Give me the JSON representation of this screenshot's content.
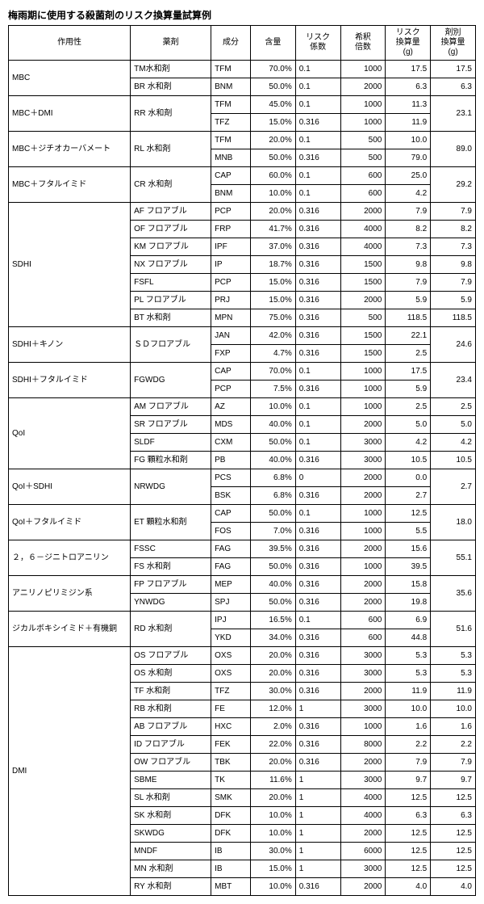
{
  "title": "梅雨期に使用する殺菌剤のリスク換算量試算例",
  "header": {
    "moa": "作用性",
    "product": "薬剤",
    "ingredient": "成分",
    "content": "含量",
    "risk_coef": "リスク\n係数",
    "dilution": "希釈\n倍数",
    "risk_amount": "リスク\n換算量\n(g)",
    "agent_amount": "剤別\n換算量\n(g)"
  },
  "groups": [
    {
      "moa": "MBC",
      "products": [
        {
          "name": "TM水和剤",
          "rows": [
            {
              "ing": "TFM",
              "cnt": "70.0%",
              "rc": "0.1",
              "dil": "1000",
              "ra": "17.5"
            }
          ],
          "agent": "17.5"
        },
        {
          "name": "BR 水和剤",
          "rows": [
            {
              "ing": "BNM",
              "cnt": "50.0%",
              "rc": "0.1",
              "dil": "2000",
              "ra": "6.3"
            }
          ],
          "agent": "6.3"
        }
      ]
    },
    {
      "moa": "MBC＋DMI",
      "products": [
        {
          "name": "RR 水和剤",
          "rows": [
            {
              "ing": "TFM",
              "cnt": "45.0%",
              "rc": "0.1",
              "dil": "1000",
              "ra": "11.3"
            },
            {
              "ing": "TFZ",
              "cnt": "15.0%",
              "rc": "0.316",
              "dil": "1000",
              "ra": "11.9"
            }
          ],
          "agent": "23.1"
        }
      ]
    },
    {
      "moa": "MBC＋ジチオカーバメート",
      "products": [
        {
          "name": "RL 水和剤",
          "rows": [
            {
              "ing": "TFM",
              "cnt": "20.0%",
              "rc": "0.1",
              "dil": "500",
              "ra": "10.0"
            },
            {
              "ing": "MNB",
              "cnt": "50.0%",
              "rc": "0.316",
              "dil": "500",
              "ra": "79.0"
            }
          ],
          "agent": "89.0"
        }
      ]
    },
    {
      "moa": "MBC＋フタルイミド",
      "products": [
        {
          "name": "CR 水和剤",
          "rows": [
            {
              "ing": "CAP",
              "cnt": "60.0%",
              "rc": "0.1",
              "dil": "600",
              "ra": "25.0"
            },
            {
              "ing": "BNM",
              "cnt": "10.0%",
              "rc": "0.1",
              "dil": "600",
              "ra": "4.2"
            }
          ],
          "agent": "29.2"
        }
      ]
    },
    {
      "moa": "SDHI",
      "products": [
        {
          "name": "AF フロアブル",
          "rows": [
            {
              "ing": "PCP",
              "cnt": "20.0%",
              "rc": "0.316",
              "dil": "2000",
              "ra": "7.9"
            }
          ],
          "agent": "7.9"
        },
        {
          "name": "OF フロアブル",
          "rows": [
            {
              "ing": "FRP",
              "cnt": "41.7%",
              "rc": "0.316",
              "dil": "4000",
              "ra": "8.2"
            }
          ],
          "agent": "8.2"
        },
        {
          "name": "KM フロアブル",
          "rows": [
            {
              "ing": "IPF",
              "cnt": "37.0%",
              "rc": "0.316",
              "dil": "4000",
              "ra": "7.3"
            }
          ],
          "agent": "7.3"
        },
        {
          "name": "NX フロアブル",
          "rows": [
            {
              "ing": "IP",
              "cnt": "18.7%",
              "rc": "0.316",
              "dil": "1500",
              "ra": "9.8"
            }
          ],
          "agent": "9.8"
        },
        {
          "name": "FSFL",
          "rows": [
            {
              "ing": "PCP",
              "cnt": "15.0%",
              "rc": "0.316",
              "dil": "1500",
              "ra": "7.9"
            }
          ],
          "agent": "7.9"
        },
        {
          "name": "PL フロアブル",
          "rows": [
            {
              "ing": "PRJ",
              "cnt": "15.0%",
              "rc": "0.316",
              "dil": "2000",
              "ra": "5.9"
            }
          ],
          "agent": "5.9"
        },
        {
          "name": "BT 水和剤",
          "rows": [
            {
              "ing": "MPN",
              "cnt": "75.0%",
              "rc": "0.316",
              "dil": "500",
              "ra": "118.5"
            }
          ],
          "agent": "118.5"
        }
      ]
    },
    {
      "moa": "SDHI＋キノン",
      "products": [
        {
          "name": "ＳＤフロアブル",
          "rows": [
            {
              "ing": "JAN",
              "cnt": "42.0%",
              "rc": "0.316",
              "dil": "1500",
              "ra": "22.1"
            },
            {
              "ing": "FXP",
              "cnt": "4.7%",
              "rc": "0.316",
              "dil": "1500",
              "ra": "2.5"
            }
          ],
          "agent": "24.6"
        }
      ]
    },
    {
      "moa": "SDHI＋フタルイミド",
      "products": [
        {
          "name": "FGWDG",
          "rows": [
            {
              "ing": "CAP",
              "cnt": "70.0%",
              "rc": "0.1",
              "dil": "1000",
              "ra": "17.5"
            },
            {
              "ing": "PCP",
              "cnt": "7.5%",
              "rc": "0.316",
              "dil": "1000",
              "ra": "5.9"
            }
          ],
          "agent": "23.4"
        }
      ]
    },
    {
      "moa": "QoI",
      "products": [
        {
          "name": "AM フロアブル",
          "rows": [
            {
              "ing": "AZ",
              "cnt": "10.0%",
              "rc": "0.1",
              "dil": "1000",
              "ra": "2.5"
            }
          ],
          "agent": "2.5"
        },
        {
          "name": "SR フロアブル",
          "rows": [
            {
              "ing": "MDS",
              "cnt": "40.0%",
              "rc": "0.1",
              "dil": "2000",
              "ra": "5.0"
            }
          ],
          "agent": "5.0"
        },
        {
          "name": "SLDF",
          "rows": [
            {
              "ing": "CXM",
              "cnt": "50.0%",
              "rc": "0.1",
              "dil": "3000",
              "ra": "4.2"
            }
          ],
          "agent": "4.2"
        },
        {
          "name": "FG 顆粒水和剤",
          "rows": [
            {
              "ing": "PB",
              "cnt": "40.0%",
              "rc": "0.316",
              "dil": "3000",
              "ra": "10.5"
            }
          ],
          "agent": "10.5"
        }
      ]
    },
    {
      "moa": "QoI＋SDHI",
      "products": [
        {
          "name": "NRWDG",
          "rows": [
            {
              "ing": "PCS",
              "cnt": "6.8%",
              "rc": "0",
              "dil": "2000",
              "ra": "0.0"
            },
            {
              "ing": "BSK",
              "cnt": "6.8%",
              "rc": "0.316",
              "dil": "2000",
              "ra": "2.7"
            }
          ],
          "agent": "2.7"
        }
      ]
    },
    {
      "moa": "QoI＋フタルイミド",
      "products": [
        {
          "name": "ET 顆粒水和剤",
          "rows": [
            {
              "ing": "CAP",
              "cnt": "50.0%",
              "rc": "0.1",
              "dil": "1000",
              "ra": "12.5"
            },
            {
              "ing": "FOS",
              "cnt": "7.0%",
              "rc": "0.316",
              "dil": "1000",
              "ra": "5.5"
            }
          ],
          "agent": "18.0"
        }
      ]
    },
    {
      "moa": "２，６－ジニトロアニリン",
      "products": [
        {
          "name": "FSSC",
          "rows": [
            {
              "ing": "FAG",
              "cnt": "39.5%",
              "rc": "0.316",
              "dil": "2000",
              "ra": "15.6"
            }
          ],
          "agent_join": true
        },
        {
          "name": "FS 水和剤",
          "rows": [
            {
              "ing": "FAG",
              "cnt": "50.0%",
              "rc": "0.316",
              "dil": "1000",
              "ra": "39.5"
            }
          ],
          "agent": "55.1",
          "agent_span": 2
        }
      ]
    },
    {
      "moa": "アニリノピリミジン系",
      "products": [
        {
          "name": "FP フロアブル",
          "rows": [
            {
              "ing": "MEP",
              "cnt": "40.0%",
              "rc": "0.316",
              "dil": "2000",
              "ra": "15.8"
            }
          ],
          "agent_join": true
        },
        {
          "name": "YNWDG",
          "rows": [
            {
              "ing": "SPJ",
              "cnt": "50.0%",
              "rc": "0.316",
              "dil": "2000",
              "ra": "19.8"
            }
          ],
          "agent": "35.6",
          "agent_span": 2
        }
      ]
    },
    {
      "moa": "ジカルボキシイミド＋有機銅",
      "products": [
        {
          "name": "RD 水和剤",
          "rows": [
            {
              "ing": "IPJ",
              "cnt": "16.5%",
              "rc": "0.1",
              "dil": "600",
              "ra": "6.9"
            },
            {
              "ing": "YKD",
              "cnt": "34.0%",
              "rc": "0.316",
              "dil": "600",
              "ra": "44.8"
            }
          ],
          "agent": "51.6"
        }
      ]
    },
    {
      "moa": "DMI",
      "products": [
        {
          "name": "OS フロアブル",
          "rows": [
            {
              "ing": "OXS",
              "cnt": "20.0%",
              "rc": "0.316",
              "dil": "3000",
              "ra": "5.3"
            }
          ],
          "agent": "5.3"
        },
        {
          "name": "OS 水和剤",
          "rows": [
            {
              "ing": "OXS",
              "cnt": "20.0%",
              "rc": "0.316",
              "dil": "3000",
              "ra": "5.3"
            }
          ],
          "agent": "5.3"
        },
        {
          "name": "TF 水和剤",
          "rows": [
            {
              "ing": "TFZ",
              "cnt": "30.0%",
              "rc": "0.316",
              "dil": "2000",
              "ra": "11.9"
            }
          ],
          "agent": "11.9"
        },
        {
          "name": "RB 水和剤",
          "rows": [
            {
              "ing": "FE",
              "cnt": "12.0%",
              "rc": "1",
              "dil": "3000",
              "ra": "10.0"
            }
          ],
          "agent": "10.0"
        },
        {
          "name": "AB フロアブル",
          "rows": [
            {
              "ing": "HXC",
              "cnt": "2.0%",
              "rc": "0.316",
              "dil": "1000",
              "ra": "1.6"
            }
          ],
          "agent": "1.6"
        },
        {
          "name": "ID フロアブル",
          "rows": [
            {
              "ing": "FEK",
              "cnt": "22.0%",
              "rc": "0.316",
              "dil": "8000",
              "ra": "2.2"
            }
          ],
          "agent": "2.2"
        },
        {
          "name": "OW フロアブル",
          "rows": [
            {
              "ing": "TBK",
              "cnt": "20.0%",
              "rc": "0.316",
              "dil": "2000",
              "ra": "7.9"
            }
          ],
          "agent": "7.9"
        },
        {
          "name": "SBME",
          "rows": [
            {
              "ing": "TK",
              "cnt": "11.6%",
              "rc": "1",
              "dil": "3000",
              "ra": "9.7"
            }
          ],
          "agent": "9.7"
        },
        {
          "name": "SL 水和剤",
          "rows": [
            {
              "ing": "SMK",
              "cnt": "20.0%",
              "rc": "1",
              "dil": "4000",
              "ra": "12.5"
            }
          ],
          "agent": "12.5"
        },
        {
          "name": "SK 水和剤",
          "rows": [
            {
              "ing": "DFK",
              "cnt": "10.0%",
              "rc": "1",
              "dil": "4000",
              "ra": "6.3"
            }
          ],
          "agent": "6.3"
        },
        {
          "name": "SKWDG",
          "rows": [
            {
              "ing": "DFK",
              "cnt": "10.0%",
              "rc": "1",
              "dil": "2000",
              "ra": "12.5"
            }
          ],
          "agent": "12.5"
        },
        {
          "name": "MNDF",
          "rows": [
            {
              "ing": "IB",
              "cnt": "30.0%",
              "rc": "1",
              "dil": "6000",
              "ra": "12.5"
            }
          ],
          "agent": "12.5"
        },
        {
          "name": "MN 水和剤",
          "rows": [
            {
              "ing": "IB",
              "cnt": "15.0%",
              "rc": "1",
              "dil": "3000",
              "ra": "12.5"
            }
          ],
          "agent": "12.5"
        },
        {
          "name": "RY 水和剤",
          "rows": [
            {
              "ing": "MBT",
              "cnt": "10.0%",
              "rc": "0.316",
              "dil": "2000",
              "ra": "4.0"
            }
          ],
          "agent": "4.0"
        }
      ]
    }
  ]
}
